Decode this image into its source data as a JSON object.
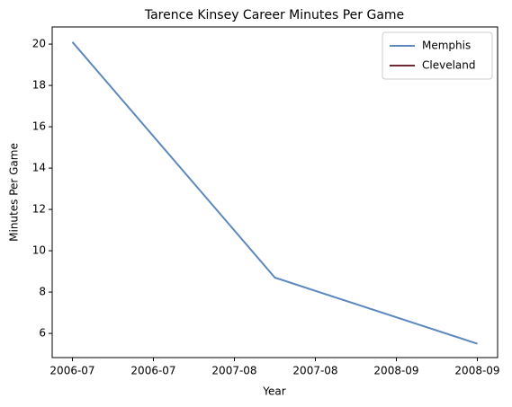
{
  "chart_data": {
    "type": "line",
    "title": "Tarence Kinsey Career Minutes Per Game",
    "xlabel": "Year",
    "ylabel": "Minutes Per Game",
    "x": [
      0,
      1,
      2
    ],
    "series": [
      {
        "name": "Memphis",
        "color": "#5d88bd",
        "values": [
          20.1,
          8.7,
          5.5
        ]
      },
      {
        "name": "Cleveland",
        "color": "#6f2633",
        "values": [
          null,
          null,
          null
        ]
      }
    ],
    "xlim": [
      -0.1,
      2.1
    ],
    "xticks": [
      {
        "value": 0,
        "label": "2006-07"
      },
      {
        "value": 0.4,
        "label": "2006-07"
      },
      {
        "value": 0.8,
        "label": "2007-08"
      },
      {
        "value": 1.2,
        "label": "2007-08"
      },
      {
        "value": 1.6,
        "label": "2008-09"
      },
      {
        "value": 2.0,
        "label": "2008-09"
      }
    ],
    "ylim": [
      4.83,
      20.83
    ],
    "yticks": [
      6,
      8,
      10,
      12,
      14,
      16,
      18,
      20
    ],
    "legend": "upper right",
    "grid": false
  }
}
